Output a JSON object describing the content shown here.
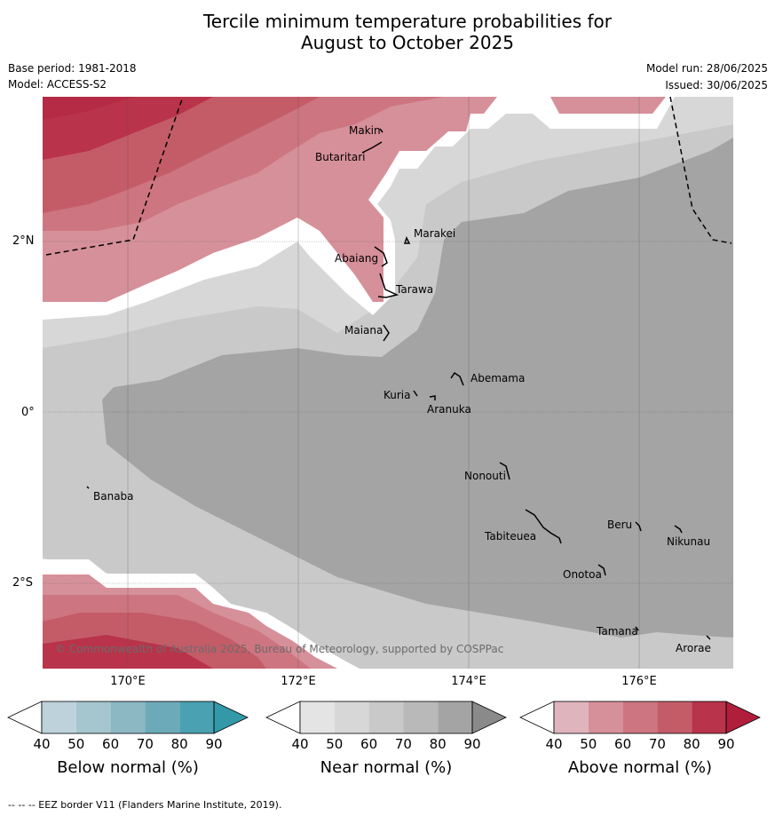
{
  "title_line1": "Tercile minimum temperature probabilities for",
  "title_line2": "August to October 2025",
  "meta": {
    "base_period": "Base period: 1981-2018",
    "model": "Model: ACCESS-S2",
    "model_run": "Model run: 28/06/2025",
    "issued": "Issued: 30/06/2025"
  },
  "axes": {
    "lon_labels": [
      "170°E",
      "172°E",
      "174°E",
      "176°E"
    ],
    "lat_labels": [
      "2°N",
      "0°",
      "2°S"
    ]
  },
  "islands": [
    "Makin",
    "Butaritari",
    "Marakei",
    "Abaiang",
    "Tarawa",
    "Maiana",
    "Abemama",
    "Kuria",
    "Aranuka",
    "Nonouti",
    "Banaba",
    "Beru",
    "Nikunau",
    "Tabiteuea",
    "Onotoa",
    "Tamana",
    "Arorae"
  ],
  "copyright": "© Commonwealth of Australia 2025, Bureau of Meteorology, supported by COSPPac",
  "colorbars": [
    {
      "label": "Below normal (%)",
      "ticks": [
        "40",
        "50",
        "60",
        "70",
        "80",
        "90"
      ],
      "colors": [
        "#ffffff",
        "#bdd2db",
        "#a5c6cf",
        "#8cb8c4",
        "#6daab9",
        "#4aa1b1",
        "#3399a8"
      ]
    },
    {
      "label": "Near normal (%)",
      "ticks": [
        "40",
        "50",
        "60",
        "70",
        "80",
        "90"
      ],
      "colors": [
        "#ffffff",
        "#e4e4e4",
        "#d7d7d7",
        "#c9c9c9",
        "#b9b9b9",
        "#a4a4a4",
        "#8a8a8a"
      ]
    },
    {
      "label": "Above normal (%)",
      "ticks": [
        "40",
        "50",
        "60",
        "70",
        "80",
        "90"
      ],
      "colors": [
        "#ffffff",
        "#e0b4bd",
        "#d6909a",
        "#cd7580",
        "#c45c68",
        "#b9334a",
        "#b11e3c"
      ]
    }
  ],
  "footer": "--  --  -- EEZ border V11 (Flanders Marine Institute, 2019)."
}
